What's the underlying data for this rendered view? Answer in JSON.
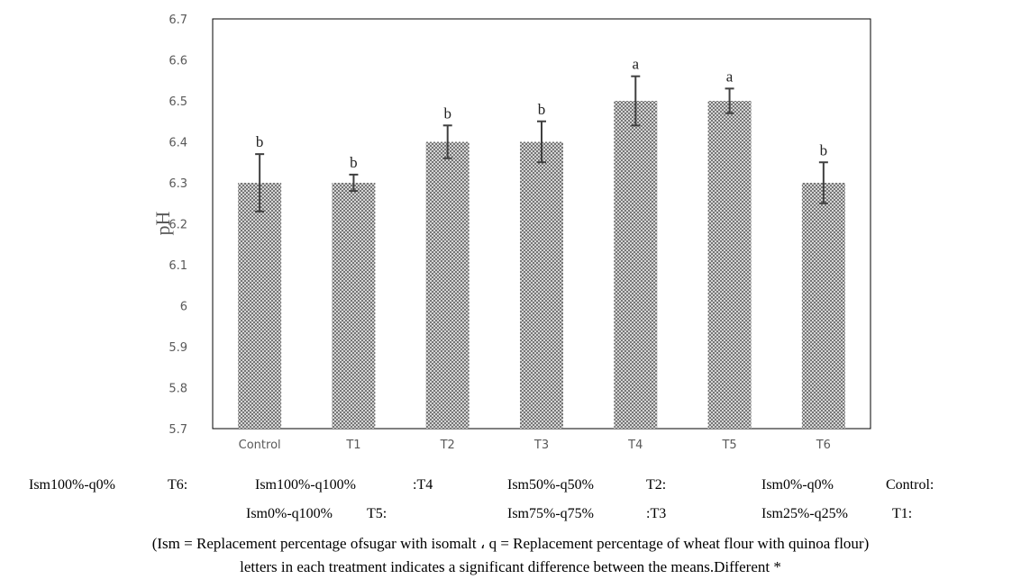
{
  "chart_data": {
    "type": "bar",
    "categories": [
      "Control",
      "T1",
      "T2",
      "T3",
      "T4",
      "T5",
      "T6"
    ],
    "values": [
      6.3,
      6.3,
      6.4,
      6.4,
      6.5,
      6.5,
      6.3
    ],
    "error": [
      0.07,
      0.02,
      0.04,
      0.05,
      0.06,
      0.03,
      0.05
    ],
    "significance_letters": [
      "b",
      "b",
      "b",
      "b",
      "a",
      "a",
      "b"
    ],
    "title": "",
    "xlabel": "",
    "ylabel": "pH",
    "ylim": [
      5.7,
      6.7
    ],
    "yticks": [
      "6.7",
      "6.6",
      "6.5",
      "6.4",
      "6.3",
      "6.2",
      "6.1",
      "6",
      "5.9",
      "5.8",
      "5.7"
    ],
    "grid": false,
    "bar_pattern": "crosshatch",
    "bar_color": "#7f7f7f"
  },
  "legend": {
    "row1": [
      "Ism100%-q0%",
      "T6:",
      "Ism100%-q100%",
      ":T4",
      "Ism50%-q50%",
      "T2:",
      "Ism0%-q0%",
      "Control:"
    ],
    "row2": [
      "Ism0%-q100%",
      "T5:",
      "Ism75%-q75%",
      ":T3",
      "Ism25%-q25%",
      "T1:"
    ]
  },
  "notes": {
    "definition": "(Ism = Replacement percentage ofsugar with isomalt ، q = Replacement percentage of wheat flour with quinoa flour)",
    "significance": "letters in each treatment indicates a significant difference between the means.Different *"
  }
}
